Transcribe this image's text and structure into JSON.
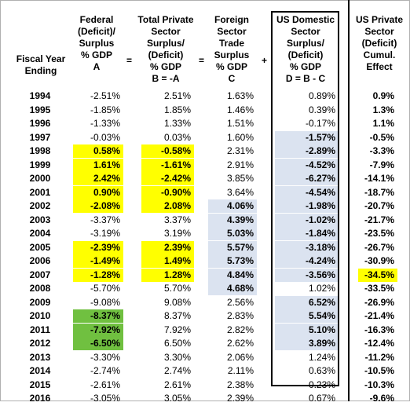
{
  "headers": {
    "year": "Fiscal Year\nEnding",
    "a": "Federal\n(Deficit)/\nSurplus\n% GDP\nA",
    "b": "Total Private\nSector\nSurplus/\n(Deficit)\n% GDP\nB = -A",
    "c": "Foreign\nSector\nTrade\nSurplus\n% GDP\nC",
    "d": "US Domestic\nSector\nSurplus/\n(Deficit)\n% GDP\nD = B - C",
    "e": "US Private\nSector\n(Deficit)\nCumul.\nEffect"
  },
  "operators": {
    "eq1": "=",
    "eq2": "=",
    "plus": "+"
  },
  "colors": {
    "yellow": "#ffff00",
    "green": "#70c040",
    "blue": "#dbe3f0"
  },
  "chart_data": {
    "type": "table",
    "columns": [
      "Fiscal Year Ending",
      "Federal (Deficit)/ Surplus % GDP A",
      "Total Private Sector Surplus/ (Deficit) % GDP B = -A",
      "Foreign Sector Trade Surplus % GDP C",
      "US Domestic Sector Surplus/ (Deficit) % GDP D = B - C",
      "US Private Sector (Deficit) Cumul. Effect"
    ],
    "rows": [
      {
        "year": "1994",
        "a": "-2.51%",
        "b": "2.51%",
        "c": "1.63%",
        "d": "0.89%",
        "e": "0.9%"
      },
      {
        "year": "1995",
        "a": "-1.85%",
        "b": "1.85%",
        "c": "1.46%",
        "d": "0.39%",
        "e": "1.3%"
      },
      {
        "year": "1996",
        "a": "-1.33%",
        "b": "1.33%",
        "c": "1.51%",
        "d": "-0.17%",
        "e": "1.1%"
      },
      {
        "year": "1997",
        "a": "-0.03%",
        "b": "0.03%",
        "c": "1.60%",
        "d": "-1.57%",
        "e": "-0.5%",
        "dh": "blue"
      },
      {
        "year": "1998",
        "a": "0.58%",
        "b": "-0.58%",
        "c": "2.31%",
        "d": "-2.89%",
        "e": "-3.3%",
        "ah": "yellow",
        "bh": "yellow",
        "dh": "blue"
      },
      {
        "year": "1999",
        "a": "1.61%",
        "b": "-1.61%",
        "c": "2.91%",
        "d": "-4.52%",
        "e": "-7.9%",
        "ah": "yellow",
        "bh": "yellow",
        "dh": "blue"
      },
      {
        "year": "2000",
        "a": "2.42%",
        "b": "-2.42%",
        "c": "3.85%",
        "d": "-6.27%",
        "e": "-14.1%",
        "ah": "yellow",
        "bh": "yellow",
        "dh": "blue"
      },
      {
        "year": "2001",
        "a": "0.90%",
        "b": "-0.90%",
        "c": "3.64%",
        "d": "-4.54%",
        "e": "-18.7%",
        "ah": "yellow",
        "bh": "yellow",
        "dh": "blue"
      },
      {
        "year": "2002",
        "a": "-2.08%",
        "b": "2.08%",
        "c": "4.06%",
        "d": "-1.98%",
        "e": "-20.7%",
        "ah": "yellow",
        "bh": "yellow",
        "ch": "blue",
        "dh": "blue"
      },
      {
        "year": "2003",
        "a": "-3.37%",
        "b": "3.37%",
        "c": "4.39%",
        "d": "-1.02%",
        "e": "-21.7%",
        "ch": "blue",
        "dh": "blue"
      },
      {
        "year": "2004",
        "a": "-3.19%",
        "b": "3.19%",
        "c": "5.03%",
        "d": "-1.84%",
        "e": "-23.5%",
        "ch": "blue",
        "dh": "blue"
      },
      {
        "year": "2005",
        "a": "-2.39%",
        "b": "2.39%",
        "c": "5.57%",
        "d": "-3.18%",
        "e": "-26.7%",
        "ah": "yellow",
        "bh": "yellow",
        "ch": "blue",
        "dh": "blue"
      },
      {
        "year": "2006",
        "a": "-1.49%",
        "b": "1.49%",
        "c": "5.73%",
        "d": "-4.24%",
        "e": "-30.9%",
        "ah": "yellow",
        "bh": "yellow",
        "ch": "blue",
        "dh": "blue"
      },
      {
        "year": "2007",
        "a": "-1.28%",
        "b": "1.28%",
        "c": "4.84%",
        "d": "-3.56%",
        "e": "-34.5%",
        "ah": "yellow",
        "bh": "yellow",
        "ch": "blue",
        "dh": "blue",
        "eh": "yellow"
      },
      {
        "year": "2008",
        "a": "-5.70%",
        "b": "5.70%",
        "c": "4.68%",
        "d": "1.02%",
        "e": "-33.5%",
        "ch": "blue"
      },
      {
        "year": "2009",
        "a": "-9.08%",
        "b": "9.08%",
        "c": "2.56%",
        "d": "6.52%",
        "e": "-26.9%",
        "dh": "blue"
      },
      {
        "year": "2010",
        "a": "-8.37%",
        "b": "8.37%",
        "c": "2.83%",
        "d": "5.54%",
        "e": "-21.4%",
        "ah": "green",
        "dh": "blue"
      },
      {
        "year": "2011",
        "a": "-7.92%",
        "b": "7.92%",
        "c": "2.82%",
        "d": "5.10%",
        "e": "-16.3%",
        "ah": "green",
        "dh": "blue"
      },
      {
        "year": "2012",
        "a": "-6.50%",
        "b": "6.50%",
        "c": "2.62%",
        "d": "3.89%",
        "e": "-12.4%",
        "ah": "green",
        "dh": "blue"
      },
      {
        "year": "2013",
        "a": "-3.30%",
        "b": "3.30%",
        "c": "2.06%",
        "d": "1.24%",
        "e": "-11.2%"
      },
      {
        "year": "2014",
        "a": "-2.74%",
        "b": "2.74%",
        "c": "2.11%",
        "d": "0.63%",
        "e": "-10.5%"
      },
      {
        "year": "2015",
        "a": "-2.61%",
        "b": "2.61%",
        "c": "2.38%",
        "d": "0.23%",
        "e": "-10.3%"
      },
      {
        "year": "2016",
        "a": "-3.05%",
        "b": "3.05%",
        "c": "2.39%",
        "d": "0.67%",
        "e": "-9.6%"
      }
    ]
  }
}
